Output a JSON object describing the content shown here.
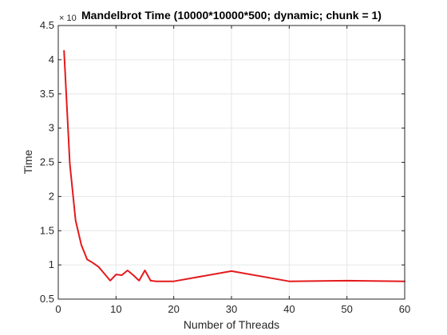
{
  "chart_data": {
    "type": "line",
    "title": "Mandelbrot Time (10000*10000*500; dynamic; chunk = 1)",
    "xlabel": "Number of Threads",
    "ylabel": "Time",
    "xlim": [
      0,
      60
    ],
    "ylim": [
      0.5,
      4.5
    ],
    "x_ticks": [
      0,
      10,
      20,
      30,
      40,
      50,
      60
    ],
    "y_ticks": [
      0.5,
      1,
      1.5,
      2,
      2.5,
      3,
      3.5,
      4,
      4.5
    ],
    "x_tick_labels": [
      "0",
      "10",
      "20",
      "30",
      "40",
      "50",
      "60"
    ],
    "y_tick_labels": [
      "0.5",
      "1",
      "1.5",
      "2",
      "2.5",
      "3",
      "3.5",
      "4",
      "4.5"
    ],
    "y_exponent_label": "× 10",
    "grid": true,
    "series": [
      {
        "color": "#e41a1c",
        "x": [
          1,
          2,
          3,
          4,
          5,
          6,
          7,
          8,
          9,
          10,
          11,
          12,
          13,
          14,
          15,
          16,
          17,
          18,
          19,
          20,
          30,
          40,
          50,
          60
        ],
        "y": [
          4.13,
          2.48,
          1.65,
          1.29,
          1.08,
          1.03,
          0.97,
          0.87,
          0.77,
          0.86,
          0.85,
          0.92,
          0.85,
          0.77,
          0.92,
          0.77,
          0.76,
          0.76,
          0.76,
          0.76,
          0.91,
          0.76,
          0.77,
          0.76
        ]
      }
    ]
  }
}
